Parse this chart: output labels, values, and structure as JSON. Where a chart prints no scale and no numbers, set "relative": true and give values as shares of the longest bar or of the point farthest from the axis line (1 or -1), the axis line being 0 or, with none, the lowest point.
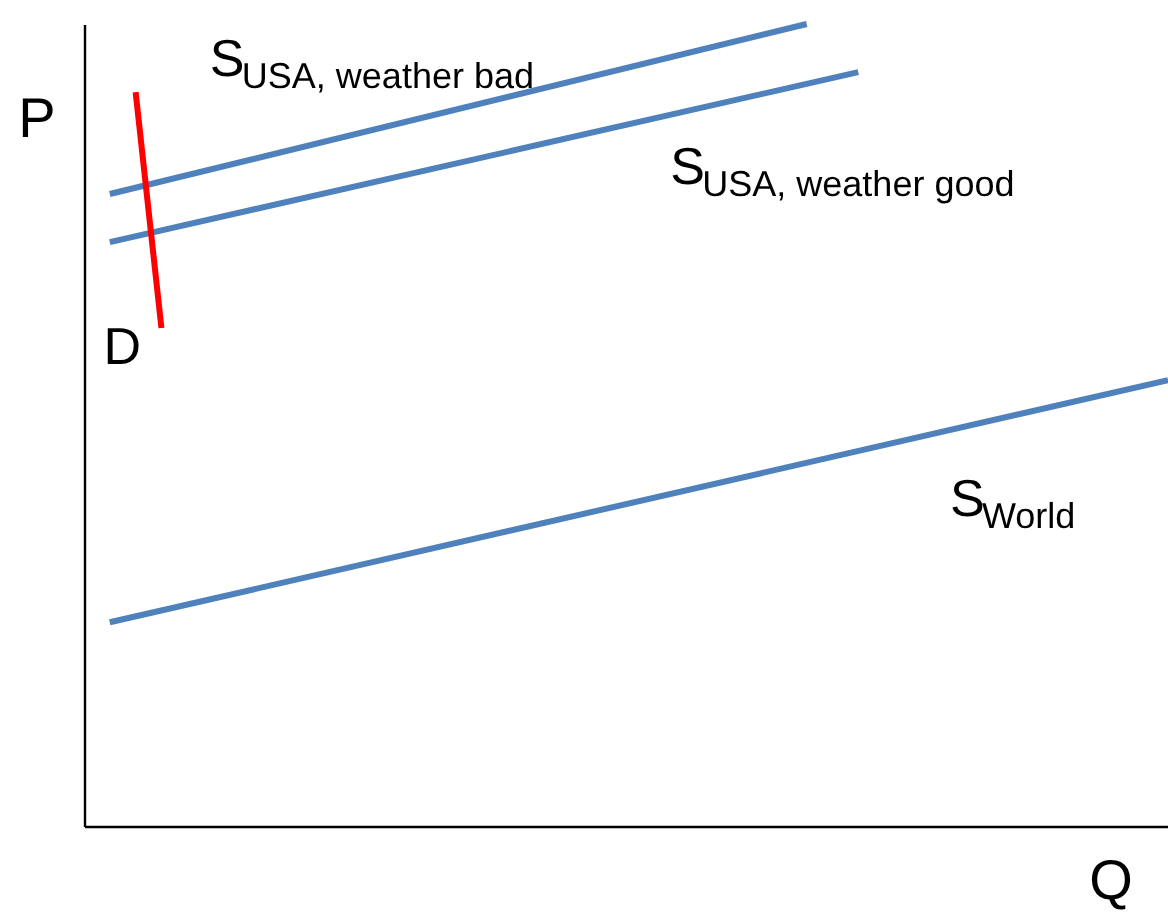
{
  "chart_data": {
    "type": "line",
    "relative": true,
    "xlabel": "Q",
    "ylabel": "P",
    "marker": "none",
    "line_style": "solid",
    "categories": [
      null,
      null,
      null,
      null,
      null,
      null,
      null,
      null,
      null,
      null,
      null,
      null,
      null,
      null,
      null,
      null,
      null,
      null,
      null,
      null,
      null,
      null,
      null,
      null,
      null,
      null,
      null,
      null,
      null,
      null,
      null,
      null,
      null,
      null,
      null,
      null,
      null,
      null,
      null,
      null,
      null,
      null,
      null
    ],
    "series": [
      {
        "name": "S$_{USA, weather bad}$",
        "color": "#4f81bd",
        "values": [
          null,
          0.788,
          null,
          null,
          null,
          null,
          null,
          null,
          null,
          null,
          null,
          null,
          null,
          null,
          null,
          null,
          null,
          null,
          null,
          null,
          null,
          null,
          null,
          null,
          null,
          null,
          null,
          null,
          1.0,
          null,
          null,
          null,
          null,
          null,
          null,
          null,
          null,
          null,
          null,
          null,
          null,
          null,
          null
        ]
      },
      {
        "name": "S$_{USA, weather good}$",
        "color": "#4f81bd",
        "values": [
          null,
          0.728,
          null,
          null,
          null,
          null,
          null,
          null,
          null,
          null,
          null,
          null,
          null,
          null,
          null,
          null,
          null,
          null,
          null,
          null,
          null,
          null,
          null,
          null,
          null,
          null,
          null,
          null,
          null,
          null,
          0.94,
          null,
          null,
          null,
          null,
          null,
          null,
          null,
          null,
          null,
          null,
          null,
          null
        ]
      },
      {
        "name": "S$_{World}$",
        "color": "#4f81bd",
        "values": [
          null,
          0.254,
          null,
          null,
          null,
          null,
          null,
          null,
          null,
          null,
          null,
          null,
          null,
          null,
          null,
          null,
          null,
          null,
          null,
          null,
          null,
          null,
          null,
          null,
          null,
          null,
          null,
          null,
          null,
          null,
          null,
          null,
          null,
          null,
          null,
          null,
          null,
          null,
          null,
          null,
          null,
          null,
          0.556
        ]
      },
      {
        "name": "D",
        "color": "#ff0000",
        "values": [
          null,
          null,
          0.915,
          0.621,
          null,
          null,
          null,
          null,
          null,
          null,
          null,
          null,
          null,
          null,
          null,
          null,
          null,
          null,
          null,
          null,
          null,
          null,
          null,
          null,
          null,
          null,
          null,
          null,
          null,
          null,
          null,
          null,
          null,
          null,
          null,
          null,
          null,
          null,
          null,
          null,
          null,
          null,
          null
        ]
      }
    ]
  }
}
